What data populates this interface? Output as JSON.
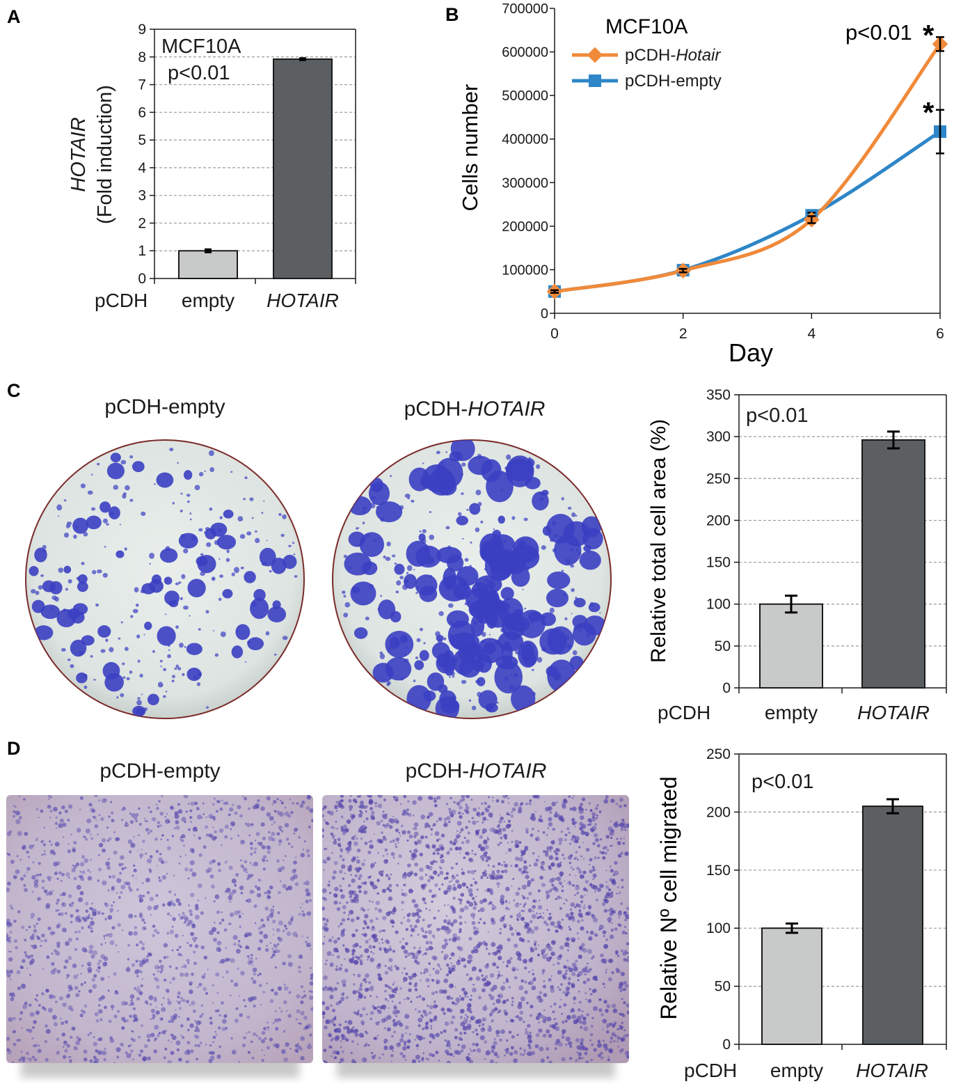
{
  "colors": {
    "empty_bar": "#c8c9c9",
    "hotair_bar": "#5b5f61",
    "hotair_line": "#f08a3a",
    "empty_line": "#2e86c8",
    "colony_stain": "#3b3fc2",
    "dish_background": "#dfe5e2",
    "transwell_background": "#c9bcd1"
  },
  "panels": {
    "A": {
      "letter": "A",
      "annotation_line1": "MCF10A",
      "annotation_line2": "p<0.01"
    },
    "B": {
      "letter": "B",
      "title": "MCF10A",
      "pvalue": "p<0.01",
      "star": "*",
      "legend_prefix": "pCDH-",
      "legend_hotair_suffix": "Hotair",
      "legend_empty": "pCDH-empty"
    },
    "C": {
      "letter": "C",
      "photo_empty_title": "pCDH-empty",
      "photo_hotair_prefix": "pCDH-",
      "photo_hotair_suffix": "HOTAIR",
      "pvalue": "p<0.01"
    },
    "D": {
      "letter": "D",
      "photo_empty_title": "pCDH-empty",
      "photo_hotair_prefix": "pCDH-",
      "photo_hotair_suffix": "HOTAIR",
      "pvalue": "p<0.01"
    }
  },
  "chart_data": [
    {
      "id": "A",
      "type": "bar",
      "ylabel_line1": "HOTAIR",
      "ylabel_line2": "(Fold induction)",
      "group_label": "pCDH",
      "categories": [
        "empty",
        "HOTAIR"
      ],
      "values": [
        1.0,
        7.92
      ],
      "errors": [
        0.05,
        0.03
      ],
      "ylim": [
        0,
        9
      ],
      "yticks": [
        0,
        1,
        2,
        3,
        4,
        5,
        6,
        7,
        8,
        9
      ],
      "grid": true
    },
    {
      "id": "B",
      "type": "line",
      "xlabel": "Day",
      "ylabel": "Cells number",
      "x": [
        0,
        2,
        4,
        6
      ],
      "xlim": [
        0,
        6
      ],
      "ylim": [
        0,
        700000
      ],
      "xticks": [
        0,
        2,
        4,
        6
      ],
      "yticks": [
        0,
        100000,
        200000,
        300000,
        400000,
        500000,
        600000,
        700000
      ],
      "legend_position": "top-left",
      "series": [
        {
          "name": "pCDH-Hotair",
          "values": [
            50000,
            98000,
            215000,
            618000
          ],
          "errors": [
            3000,
            4000,
            8000,
            16000
          ],
          "marker": "diamond"
        },
        {
          "name": "pCDH-empty",
          "values": [
            50000,
            99000,
            225000,
            417000
          ],
          "errors": [
            3000,
            4000,
            6000,
            50000
          ],
          "marker": "square"
        }
      ]
    },
    {
      "id": "C",
      "type": "bar",
      "ylabel": "Relative total cell area (%)",
      "group_label": "pCDH",
      "categories": [
        "empty",
        "HOTAIR"
      ],
      "values": [
        100,
        296
      ],
      "errors": [
        10,
        10
      ],
      "ylim": [
        0,
        350
      ],
      "yticks": [
        0,
        50,
        100,
        150,
        200,
        250,
        300,
        350
      ],
      "grid": true
    },
    {
      "id": "D",
      "type": "bar",
      "ylabel": "Relative Nº cell migrated",
      "group_label": "pCDH",
      "categories": [
        "empty",
        "HOTAIR"
      ],
      "values": [
        100,
        205
      ],
      "errors": [
        4,
        6
      ],
      "ylim": [
        0,
        250
      ],
      "yticks": [
        0,
        50,
        100,
        150,
        200,
        250
      ],
      "grid": true
    }
  ]
}
